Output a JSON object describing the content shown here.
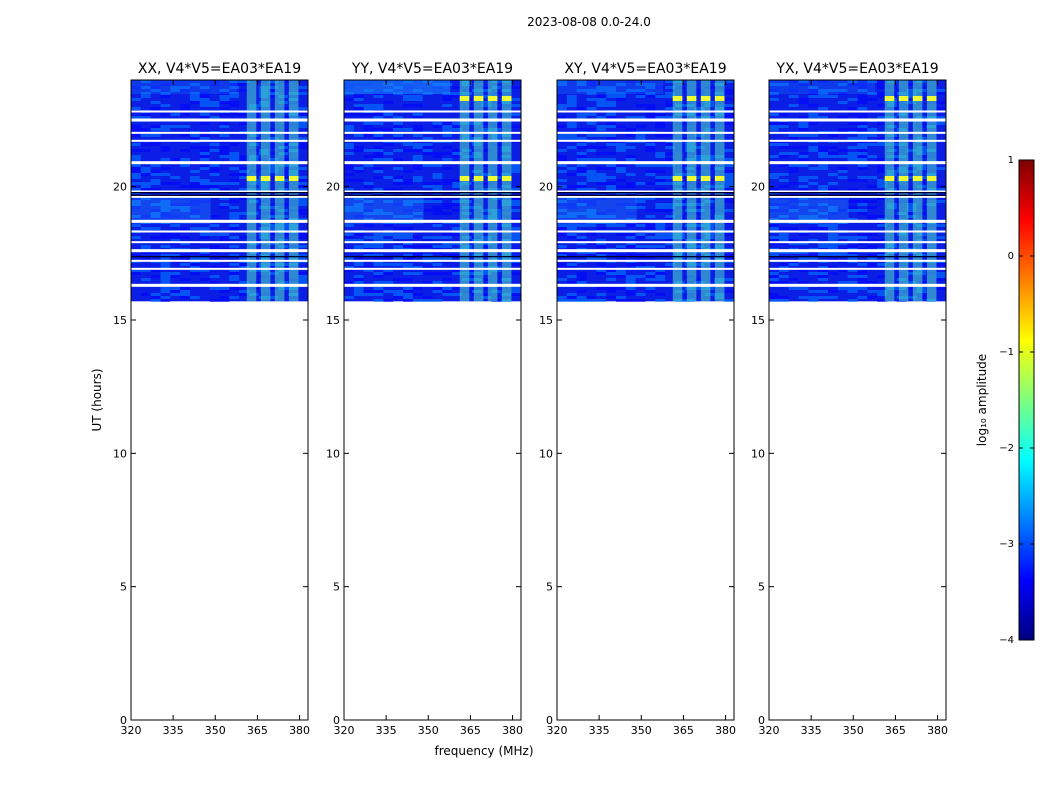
{
  "figure": {
    "suptitle": "2023-08-08 0.0-24.0",
    "xlabel": "frequency (MHz)",
    "ylabel": "UT (hours)"
  },
  "chart_data": {
    "type": "heatmap",
    "title": "2023-08-08 0.0-24.0",
    "xlabel": "frequency (MHz)",
    "ylabel": "UT (hours)",
    "xlim": [
      320,
      383
    ],
    "ylim": [
      0,
      24
    ],
    "xticks": [
      "320",
      "335",
      "350",
      "365",
      "380"
    ],
    "yticks": [
      "0",
      "5",
      "10",
      "15",
      "20"
    ],
    "data_time_range_hours": [
      15.7,
      24.0
    ],
    "rfi_band_mhz": [
      360,
      381
    ],
    "flagged_rows_ut": [
      16.3,
      16.9,
      17.2,
      17.6,
      17.9,
      18.3,
      18.7,
      19.6,
      19.8,
      20.9,
      21.7,
      22.0,
      22.5,
      22.8
    ],
    "panels": [
      {
        "title": "XX, V4*V5=EA03*EA19"
      },
      {
        "title": "YY, V4*V5=EA03*EA19"
      },
      {
        "title": "XY, V4*V5=EA03*EA19"
      },
      {
        "title": "YX, V4*V5=EA03*EA19"
      }
    ],
    "colorbar": {
      "label": "log₁₀ amplitude",
      "range": [
        -4,
        1
      ],
      "ticks": [
        "1",
        "0",
        "−1",
        "−2",
        "−3",
        "−4"
      ],
      "colormap": [
        "#00007f",
        "#0000ff",
        "#007fff",
        "#00ffff",
        "#7fff7f",
        "#ffff00",
        "#ff7f00",
        "#ff0000",
        "#7f0000"
      ]
    }
  }
}
